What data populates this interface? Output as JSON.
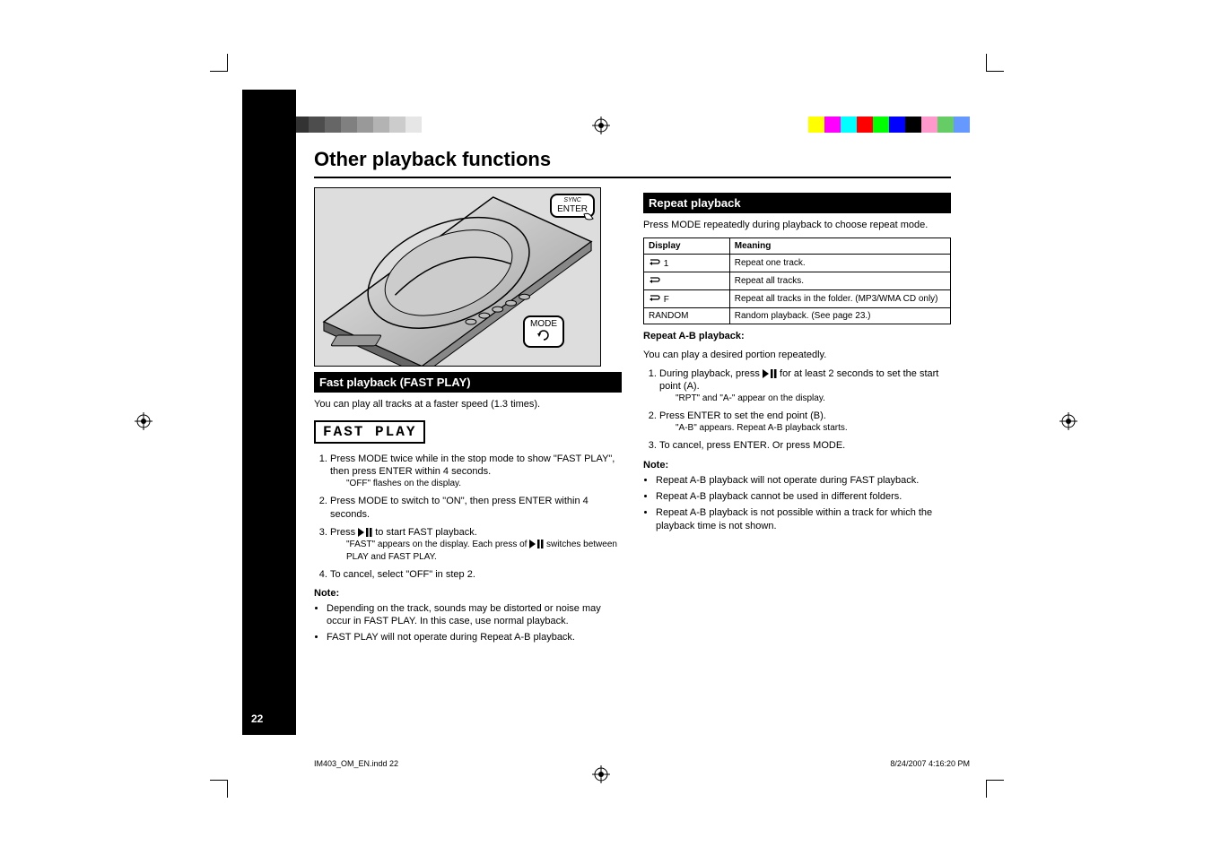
{
  "page": {
    "number": "22"
  },
  "heading": "Other playback functions",
  "left": {
    "enter_callout_sub": "SYNC",
    "enter_callout": "ENTER",
    "mode_callout": "MODE",
    "fast_title": "Fast playback (FAST PLAY)",
    "fast_intro": "You can play all tracks at a faster speed (1.3 times).",
    "lcd": "FAST PLAY",
    "step1": "Press MODE twice while in the stop mode to show \"FAST PLAY\", then press ENTER within 4 seconds.",
    "step1_sub": "\"OFF\" flashes on the display.",
    "step2": "Press MODE to switch to \"ON\", then press ENTER within 4 seconds.",
    "step3_a": "Press ",
    "step3_b": " to start FAST playback.",
    "step3_sub_a": "\"FAST\" appears on the display. Each press of ",
    "step3_sub_b": " switches between PLAY and FAST PLAY.",
    "step4": "To cancel, select \"OFF\" in step 2.",
    "note_head": "Note:",
    "note1": "Depending on the track, sounds may be distorted or noise may occur in FAST PLAY. In this case, use normal playback.",
    "note2": "FAST PLAY will not operate during Repeat A-B playback."
  },
  "right": {
    "repeat_title": "Repeat playback",
    "repeat_intro": "Press MODE repeatedly during playback to choose repeat mode.",
    "table": {
      "h1": "Display",
      "h2": "Meaning",
      "rows": [
        {
          "disp": "1",
          "mean": "Repeat one track."
        },
        {
          "disp": "",
          "mean": "Repeat all tracks."
        },
        {
          "disp": "F",
          "mean": "Repeat all tracks in the folder. (MP3/WMA CD only)"
        },
        {
          "disp": "RANDOM",
          "mean": "Random playback. (See page 23.)"
        }
      ]
    },
    "ab_head": "Repeat A-B playback:",
    "ab_intro": "You can play a desired portion repeatedly.",
    "ab_step1_a": "During playback, press ",
    "ab_step1_b": " for at least 2 seconds to set the start point (A).",
    "ab_step1_sub": "\"RPT\" and \"A-\" appear on the display.",
    "ab_step2": "Press ENTER to set the end point (B).",
    "ab_step2_sub": "\"A-B\" appears. Repeat A-B playback starts.",
    "ab_step3": "To cancel, press ENTER. Or press MODE.",
    "ab_note_head": "Note:",
    "ab_note1": "Repeat A-B playback will not operate during FAST playback.",
    "ab_note2": "Repeat A-B playback cannot be used in different folders.",
    "ab_note3": "Repeat A-B playback is not possible within a track for which the playback time is not shown."
  },
  "footer": {
    "filename": "IM403_OM_EN.indd   22",
    "date": "8/24/2007   4:16:20 PM"
  },
  "colors": {
    "gray": [
      "#000000",
      "#1a1a1a",
      "#333333",
      "#4d4d4d",
      "#666666",
      "#808080",
      "#999999",
      "#b3b3b3",
      "#cccccc",
      "#e6e6e6",
      "#ffffff"
    ],
    "hue": [
      "#ffff00",
      "#ff00ff",
      "#00ffff",
      "#ff0000",
      "#00ff00",
      "#0000ff",
      "#000000",
      "#ff99cc",
      "#66cc66",
      "#6699ff",
      "#ffffff"
    ]
  }
}
